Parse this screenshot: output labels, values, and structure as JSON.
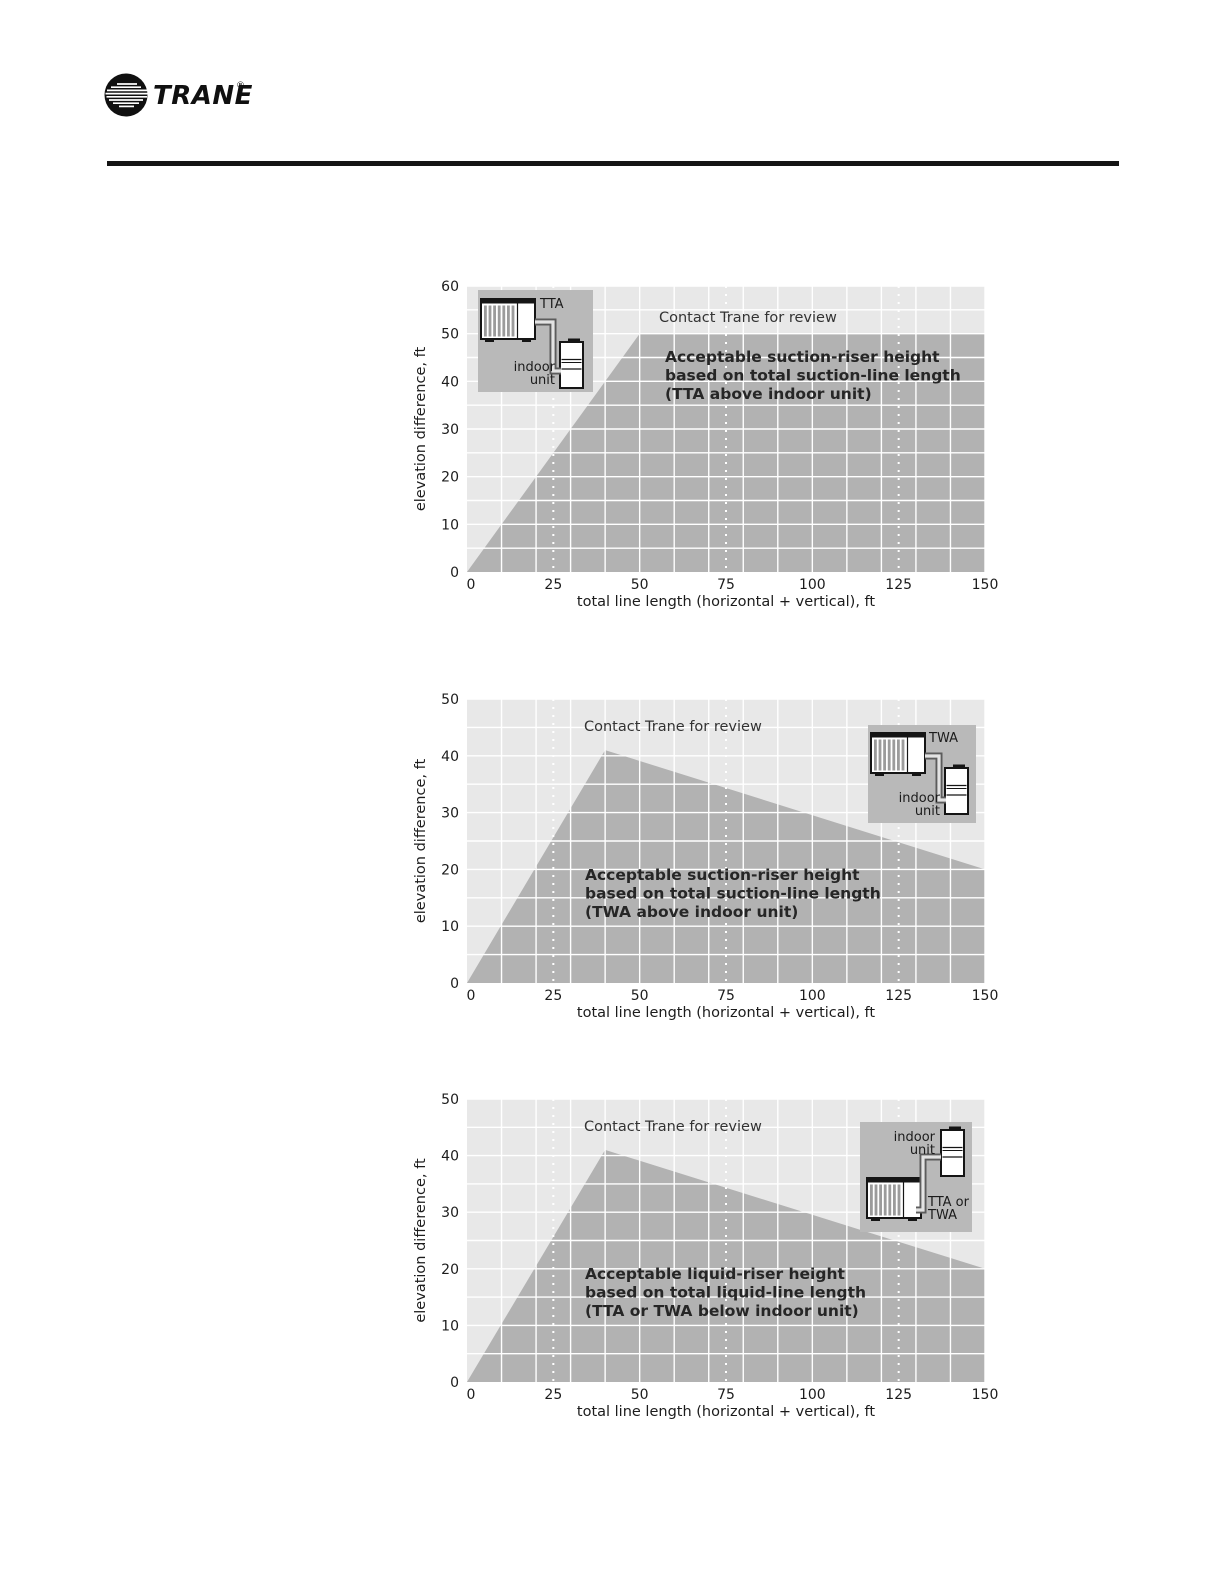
{
  "header": {
    "brand": "TRANE",
    "registered_mark": "®"
  },
  "colors": {
    "plot_bg": "#e8e8e8",
    "region_fill": "#b2b2b2",
    "grid": "#ffffff",
    "inset_bg": "#b9b9b9",
    "text": "#242424",
    "rule": "#141414"
  },
  "chart_data": [
    {
      "type": "area",
      "id": "suction-riser-tta-above",
      "title_note": "Contact Trane for review",
      "annotation_lines": [
        "Acceptable suction-riser height",
        "based on total suction-line length",
        "(TTA above indoor unit)"
      ],
      "xlabel": "total line length (horizontal + vertical), ft",
      "ylabel": "elevation difference, ft",
      "xlim": [
        0,
        150
      ],
      "ylim": [
        0,
        60
      ],
      "x_ticks": [
        0,
        25,
        50,
        75,
        100,
        125,
        150
      ],
      "y_ticks": [
        0,
        10,
        20,
        30,
        40,
        50,
        60
      ],
      "grid_step_x": 10,
      "grid_step_y": 5,
      "dotted_guides_x": [
        25,
        75,
        125
      ],
      "region_boundary_points": [
        [
          0,
          0
        ],
        [
          50,
          50
        ],
        [
          150,
          50
        ]
      ],
      "region_meaning": "acceptable suction-riser height",
      "outside_meaning": "Contact Trane for review",
      "inset": {
        "outdoor_lines": [
          "TTA"
        ],
        "indoor_lines": [
          "indoor",
          "unit"
        ],
        "layout": "outdoor-above-indoor"
      }
    },
    {
      "type": "area",
      "id": "suction-riser-twa-above",
      "title_note": "Contact Trane for review",
      "annotation_lines": [
        "Acceptable suction-riser height",
        "based on total suction-line length",
        "(TWA above indoor unit)"
      ],
      "xlabel": "total line length (horizontal + vertical), ft",
      "ylabel": "elevation difference, ft",
      "xlim": [
        0,
        150
      ],
      "ylim": [
        0,
        50
      ],
      "x_ticks": [
        0,
        25,
        50,
        75,
        100,
        125,
        150
      ],
      "y_ticks": [
        0,
        10,
        20,
        30,
        40,
        50
      ],
      "grid_step_x": 10,
      "grid_step_y": 5,
      "dotted_guides_x": [
        25,
        75,
        125
      ],
      "region_boundary_points": [
        [
          0,
          0
        ],
        [
          40,
          41
        ],
        [
          150,
          20
        ]
      ],
      "region_meaning": "acceptable suction-riser height",
      "outside_meaning": "Contact Trane for review",
      "inset": {
        "outdoor_lines": [
          "TWA"
        ],
        "indoor_lines": [
          "indoor",
          "unit"
        ],
        "layout": "outdoor-above-indoor"
      }
    },
    {
      "type": "area",
      "id": "liquid-riser-tta-twa-below",
      "title_note": "Contact Trane for review",
      "annotation_lines": [
        "Acceptable liquid-riser height",
        "based on total liquid-line length",
        "(TTA or TWA below indoor unit)"
      ],
      "xlabel": "total line length (horizontal + vertical), ft",
      "ylabel": "elevation difference, ft",
      "xlim": [
        0,
        150
      ],
      "ylim": [
        0,
        50
      ],
      "x_ticks": [
        0,
        25,
        50,
        75,
        100,
        125,
        150
      ],
      "y_ticks": [
        0,
        10,
        20,
        30,
        40,
        50
      ],
      "grid_step_x": 10,
      "grid_step_y": 5,
      "dotted_guides_x": [
        25,
        75,
        125
      ],
      "region_boundary_points": [
        [
          0,
          0
        ],
        [
          40,
          41
        ],
        [
          150,
          20
        ]
      ],
      "region_meaning": "acceptable liquid-riser height",
      "outside_meaning": "Contact Trane for review",
      "inset": {
        "outdoor_lines": [
          "TTA or",
          "TWA"
        ],
        "indoor_lines": [
          "indoor",
          "unit"
        ],
        "layout": "indoor-above-outdoor"
      }
    }
  ]
}
